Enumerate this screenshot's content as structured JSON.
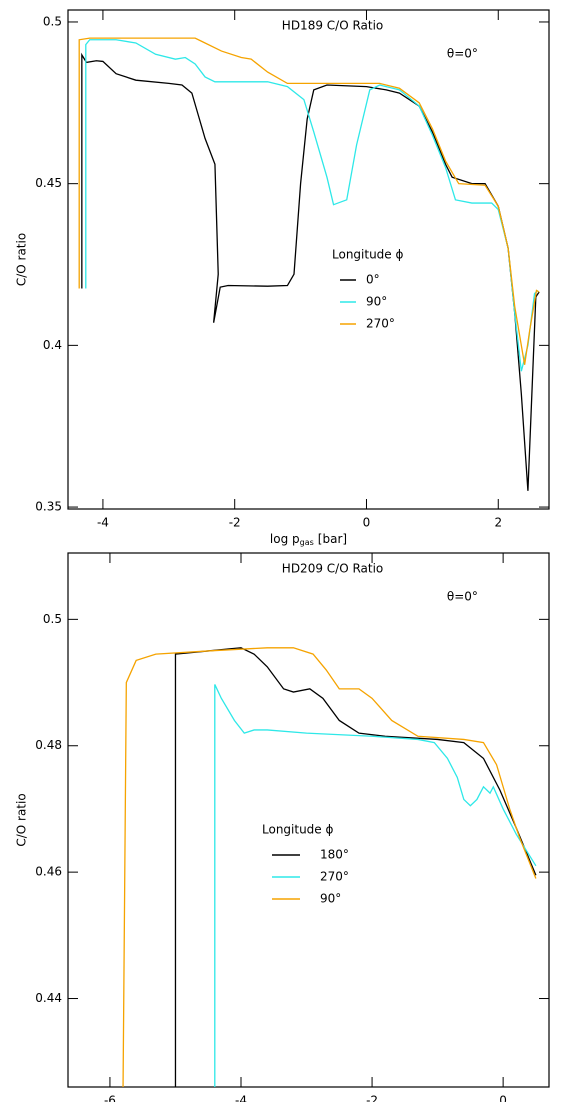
{
  "chart_data": [
    {
      "type": "line",
      "title": "HD189 C/O Ratio",
      "annotation": "θ=0°",
      "legend_title": "Longitude ϕ",
      "xlabel": [
        "log p",
        "gas",
        "[bar]"
      ],
      "ylabel": "C/O ratio",
      "xlim": [
        -4.53,
        2.77
      ],
      "ylim": [
        0.3494,
        0.5037
      ],
      "xticks": [
        -4,
        -2,
        0,
        2
      ],
      "yticks": [
        0.35,
        0.4,
        0.45,
        0.5
      ],
      "series": [
        {
          "name": "0°",
          "color": "#000000",
          "x": [
            -4.32,
            -4.32,
            -4.25,
            -4.1,
            -4.0,
            -3.8,
            -3.5,
            -3.0,
            -2.8,
            -2.65,
            -2.55,
            -2.45,
            -2.3,
            -2.25,
            -2.32,
            -2.22,
            -2.1,
            -1.5,
            -1.2,
            -1.1,
            -1.0,
            -0.9,
            -0.8,
            -0.6,
            0,
            0.3,
            0.5,
            0.8,
            1.0,
            1.2,
            1.3,
            1.6,
            1.8,
            2.0,
            2.15,
            2.25,
            2.35,
            2.45,
            2.5,
            2.57,
            2.62
          ],
          "values": [
            0.4176,
            0.4898,
            0.4875,
            0.488,
            0.4878,
            0.484,
            0.482,
            0.481,
            0.4805,
            0.478,
            0.471,
            0.464,
            0.456,
            0.422,
            0.407,
            0.418,
            0.4185,
            0.4183,
            0.4185,
            0.422,
            0.45,
            0.47,
            0.479,
            0.4805,
            0.48,
            0.479,
            0.478,
            0.474,
            0.466,
            0.456,
            0.452,
            0.45,
            0.45,
            0.443,
            0.43,
            0.41,
            0.385,
            0.355,
            0.38,
            0.415,
            0.4165
          ]
        },
        {
          "name": "90°",
          "color": "#2ee8e8",
          "x": [
            -4.26,
            -4.26,
            -4.2,
            -3.8,
            -3.5,
            -3.2,
            -2.9,
            -2.75,
            -2.6,
            -2.45,
            -2.3,
            -1.5,
            -1.2,
            -0.95,
            -0.8,
            -0.6,
            -0.5,
            -0.3,
            -0.15,
            0.05,
            0.2,
            0.5,
            0.8,
            1.0,
            1.2,
            1.35,
            1.6,
            1.9,
            2.0,
            2.15,
            2.25,
            2.35,
            2.45,
            2.55,
            2.6
          ],
          "values": [
            0.4176,
            0.493,
            0.4945,
            0.4945,
            0.4935,
            0.49,
            0.4885,
            0.489,
            0.487,
            0.483,
            0.4815,
            0.4815,
            0.48,
            0.476,
            0.466,
            0.452,
            0.4435,
            0.445,
            0.462,
            0.479,
            0.4805,
            0.479,
            0.474,
            0.465,
            0.455,
            0.445,
            0.444,
            0.444,
            0.442,
            0.43,
            0.41,
            0.392,
            0.4,
            0.416,
            0.417
          ]
        },
        {
          "name": "270°",
          "color": "#f5a300",
          "x": [
            -4.36,
            -4.36,
            -4.2,
            -2.6,
            -2.5,
            -2.2,
            -1.9,
            -1.75,
            -1.5,
            -1.2,
            0.2,
            0.5,
            0.8,
            1.0,
            1.2,
            1.4,
            1.8,
            2.0,
            2.15,
            2.25,
            2.4,
            2.48,
            2.58,
            2.62
          ],
          "values": [
            0.4176,
            0.4945,
            0.495,
            0.495,
            0.494,
            0.491,
            0.489,
            0.4885,
            0.4845,
            0.481,
            0.481,
            0.4795,
            0.475,
            0.467,
            0.457,
            0.45,
            0.4495,
            0.443,
            0.43,
            0.412,
            0.394,
            0.405,
            0.417,
            0.4165
          ]
        }
      ]
    },
    {
      "type": "line",
      "title": "HD209 C/O Ratio",
      "annotation": "θ=0°",
      "legend_title": "Longitude ϕ",
      "xlabel": [
        "log p",
        "gas",
        "[bar]"
      ],
      "ylabel": "C/O ratio",
      "xlim": [
        -6.64,
        0.7
      ],
      "ylim": [
        0.426,
        0.5105
      ],
      "xticks": [
        -6,
        -4,
        -2,
        0
      ],
      "yticks": [
        0.44,
        0.46,
        0.48,
        0.5
      ],
      "series": [
        {
          "name": "180°",
          "color": "#000000",
          "x": [
            -5.0,
            -5.0,
            -4.5,
            -4.0,
            -3.8,
            -3.6,
            -3.35,
            -3.2,
            -2.95,
            -2.75,
            -2.5,
            -2.2,
            -1.8,
            -1.0,
            -0.6,
            -0.3,
            -0.05,
            0.2,
            0.5
          ],
          "values": [
            0.426,
            0.4945,
            0.495,
            0.4955,
            0.4945,
            0.4925,
            0.489,
            0.4885,
            0.489,
            0.4875,
            0.484,
            0.482,
            0.4815,
            0.481,
            0.4805,
            0.478,
            0.473,
            0.467,
            0.4595
          ]
        },
        {
          "name": "270°",
          "color": "#2ee8e8",
          "x": [
            -4.4,
            -4.4,
            -4.3,
            -4.1,
            -3.95,
            -3.8,
            -3.6,
            -3.0,
            -2.0,
            -1.3,
            -1.05,
            -0.85,
            -0.7,
            -0.6,
            -0.5,
            -0.4,
            -0.3,
            -0.2,
            -0.15,
            0.0,
            0.2,
            0.5
          ],
          "values": [
            0.426,
            0.4897,
            0.4875,
            0.484,
            0.482,
            0.4825,
            0.4825,
            0.482,
            0.4815,
            0.481,
            0.4805,
            0.478,
            0.475,
            0.4715,
            0.4705,
            0.4715,
            0.4735,
            0.4725,
            0.4735,
            0.47,
            0.466,
            0.461
          ]
        },
        {
          "name": "90°",
          "color": "#f5a300",
          "x": [
            -5.8,
            -5.75,
            -5.6,
            -5.3,
            -4.5,
            -3.6,
            -3.2,
            -2.9,
            -2.7,
            -2.5,
            -2.2,
            -2.0,
            -1.7,
            -1.3,
            -0.6,
            -0.3,
            -0.1,
            0.1,
            0.25,
            0.5
          ],
          "values": [
            0.426,
            0.49,
            0.4935,
            0.4945,
            0.495,
            0.4955,
            0.4955,
            0.4945,
            0.492,
            0.489,
            0.489,
            0.4875,
            0.484,
            0.4815,
            0.481,
            0.4805,
            0.477,
            0.47,
            0.4655,
            0.459
          ]
        }
      ]
    }
  ]
}
